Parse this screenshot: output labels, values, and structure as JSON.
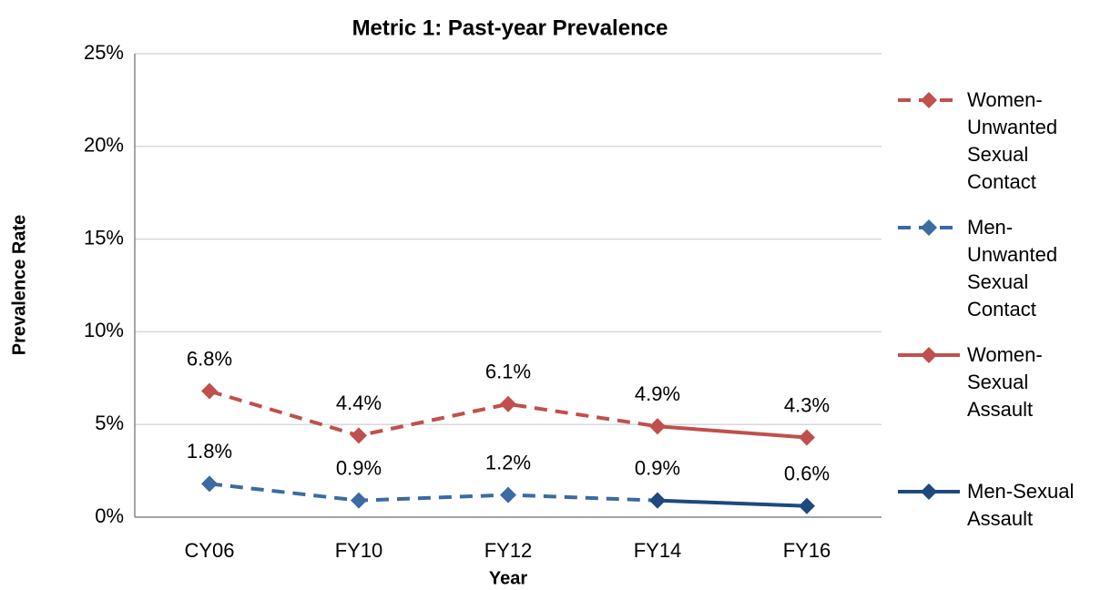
{
  "chart_data": {
    "type": "line",
    "title": "Metric 1: Past-year Prevalence",
    "x_label": "Year",
    "y_label": "Prevalence Rate",
    "categories": [
      "CY06",
      "FY10",
      "FY12",
      "FY14",
      "FY16"
    ],
    "ylim": [
      0,
      25
    ],
    "yticks": [
      {
        "value": 0,
        "label": "0%"
      },
      {
        "value": 5,
        "label": "5%"
      },
      {
        "value": 10,
        "label": "10%"
      },
      {
        "value": 15,
        "label": "15%"
      },
      {
        "value": 20,
        "label": "20%"
      },
      {
        "value": 25,
        "label": "25%"
      }
    ],
    "grid": true,
    "legend": "right",
    "series": [
      {
        "name": "Women-Unwanted Sexual Contact",
        "color": "#c0504d",
        "dashed": true,
        "values": [
          6.8,
          4.4,
          6.1,
          4.9,
          null
        ],
        "value_labels": [
          "6.8%",
          "4.4%",
          "6.1%",
          "4.9%",
          null
        ]
      },
      {
        "name": "Men-Unwanted Sexual Contact",
        "color": "#3c6aa3",
        "dashed": true,
        "values": [
          1.8,
          0.9,
          1.2,
          0.9,
          null
        ],
        "value_labels": [
          "1.8%",
          "0.9%",
          "1.2%",
          "0.9%",
          null
        ]
      },
      {
        "name": "Women-Sexual Assault",
        "color": "#c0504d",
        "dashed": false,
        "values": [
          null,
          null,
          null,
          4.9,
          4.3
        ],
        "value_labels": [
          null,
          null,
          null,
          null,
          "4.3%"
        ]
      },
      {
        "name": "Men-Sexual Assault",
        "color": "#1f497d",
        "dashed": false,
        "values": [
          null,
          null,
          null,
          0.9,
          0.6
        ],
        "value_labels": [
          null,
          null,
          null,
          null,
          "0.6%"
        ]
      }
    ]
  }
}
